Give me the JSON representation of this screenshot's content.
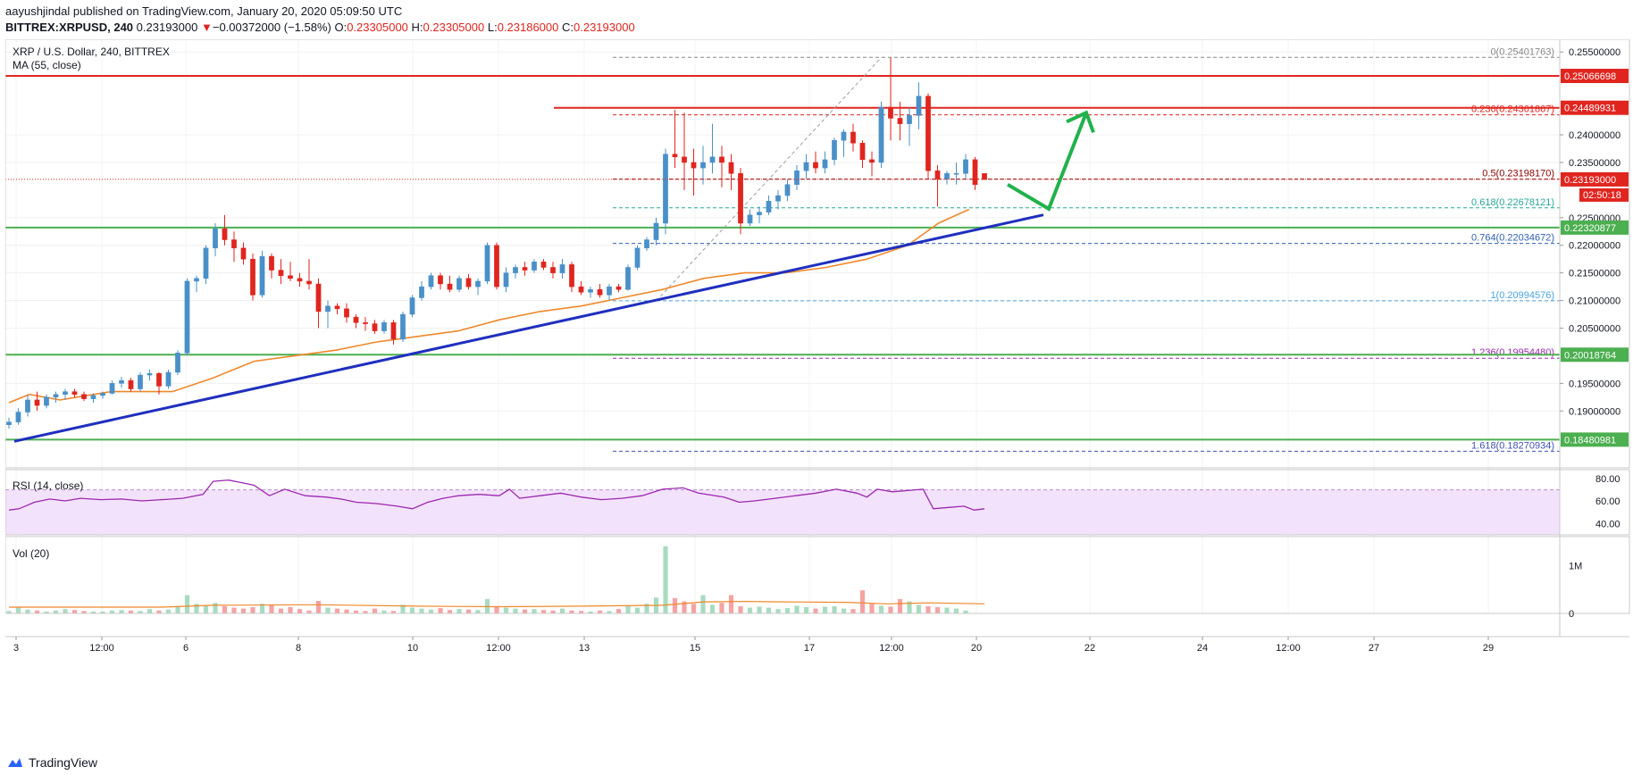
{
  "header": {
    "author": "aayushjindal",
    "published_text": " published on TradingView.com, January 20, 2020 05:09:50 UTC",
    "symbol": "BITTREX:XRPUSD, 240",
    "last": "0.23193000",
    "change": "−0.00372000 (−1.58%)",
    "o_label": "O:",
    "o_value": "0.23305000",
    "h_label": "H:",
    "h_value": "0.23305000",
    "l_label": "L:",
    "l_value": "0.23186000",
    "c_label": "C:",
    "c_value": "0.23193000"
  },
  "legend": {
    "title": "XRP / U.S. Dollar, 240, BITTREX",
    "ma": "MA (55, close)",
    "rsi": "RSI (14, close)",
    "vol": "Vol (20)"
  },
  "footer": {
    "brand": "TradingView"
  },
  "colors": {
    "up": "#4a90c8",
    "down": "#e0251f",
    "ma": "#f0882a",
    "trend": "#1f2fbf",
    "resistance": "#e0251f",
    "support": "#4caf50",
    "rsi": "#9c27b0",
    "rsi_band": "#f3e2fb",
    "arrow": "#22b14c",
    "vol_up": "#a8dcc0",
    "vol_down": "#f5a3a3"
  },
  "chart_data": {
    "type": "candlestick",
    "price_axis": {
      "ticks": [
        "0.25500000",
        "0.24000000",
        "0.23500000",
        "0.22500000",
        "0.22000000",
        "0.21500000",
        "0.21000000",
        "0.20500000",
        "0.19500000",
        "0.19000000"
      ],
      "tick_values": [
        0.255,
        0.24,
        0.235,
        0.225,
        0.22,
        0.215,
        0.21,
        0.205,
        0.195,
        0.19
      ],
      "range": [
        0.1797,
        0.2573
      ]
    },
    "time_axis": {
      "labels": [
        "3",
        "12:00",
        "6",
        "8",
        "10",
        "12:00",
        "13",
        "15",
        "17",
        "12:00",
        "20",
        "22",
        "24",
        "12:00",
        "27",
        "29"
      ]
    },
    "horizontal_levels": [
      {
        "label": "0.25066698",
        "value": 0.25066698,
        "kind": "resistance"
      },
      {
        "label": "0.24489931",
        "value": 0.24489931,
        "kind": "resistance"
      },
      {
        "label": "0.22320877",
        "value": 0.22320877,
        "kind": "support"
      },
      {
        "label": "0.20018764",
        "value": 0.20018764,
        "kind": "support"
      },
      {
        "label": "0.18480981",
        "value": 0.18480981,
        "kind": "support"
      }
    ],
    "current_price": {
      "label": "0.23193000",
      "value": 0.23193,
      "countdown": "02:50:18"
    },
    "fibonacci": [
      {
        "ratio": "0",
        "label": "0(0.25401763)",
        "value": 0.25401763,
        "color": "#888888"
      },
      {
        "ratio": "0.236",
        "label": "0.236(0.24361867)",
        "value": 0.24361867,
        "color": "#e0251f"
      },
      {
        "ratio": "0.5",
        "label": "0.5(0.23198170)",
        "value": 0.2319817,
        "color": "#8b0000"
      },
      {
        "ratio": "0.618",
        "label": "0.618(0.22678121)",
        "value": 0.22678121,
        "color": "#26a69a"
      },
      {
        "ratio": "0.764",
        "label": "0.764(0.22034672)",
        "value": 0.22034672,
        "color": "#2f5fb3"
      },
      {
        "ratio": "1",
        "label": "1(0.20994576)",
        "value": 0.20994576,
        "color": "#4aa3df"
      },
      {
        "ratio": "1.236",
        "label": "1.236(0.19954480)",
        "value": 0.1995448,
        "color": "#9c27b0"
      },
      {
        "ratio": "1.618",
        "label": "1.618(0.18270934)",
        "value": 0.18270934,
        "color": "#3f51b5"
      }
    ],
    "trendline": {
      "from": 0.1845,
      "to": 0.2255
    },
    "candles": [
      [
        0.1875,
        0.1888,
        0.1868,
        0.188
      ],
      [
        0.188,
        0.1905,
        0.1875,
        0.1898
      ],
      [
        0.1898,
        0.193,
        0.189,
        0.192
      ],
      [
        0.192,
        0.1935,
        0.19,
        0.191
      ],
      [
        0.191,
        0.193,
        0.1905,
        0.1925
      ],
      [
        0.1925,
        0.1935,
        0.1915,
        0.193
      ],
      [
        0.193,
        0.194,
        0.192,
        0.1935
      ],
      [
        0.1935,
        0.194,
        0.1925,
        0.193
      ],
      [
        0.193,
        0.1935,
        0.1918,
        0.1922
      ],
      [
        0.1922,
        0.1932,
        0.1915,
        0.1928
      ],
      [
        0.1928,
        0.1935,
        0.1922,
        0.1932
      ],
      [
        0.1932,
        0.1955,
        0.193,
        0.195
      ],
      [
        0.195,
        0.1962,
        0.1942,
        0.1955
      ],
      [
        0.1955,
        0.196,
        0.1935,
        0.194
      ],
      [
        0.194,
        0.197,
        0.1935,
        0.1965
      ],
      [
        0.1965,
        0.1975,
        0.1955,
        0.1968
      ],
      [
        0.1968,
        0.197,
        0.193,
        0.1945
      ],
      [
        0.1945,
        0.1975,
        0.194,
        0.197
      ],
      [
        0.197,
        0.201,
        0.1965,
        0.2005
      ],
      [
        0.2005,
        0.214,
        0.2,
        0.2135
      ],
      [
        0.2135,
        0.2145,
        0.2115,
        0.214
      ],
      [
        0.214,
        0.22,
        0.213,
        0.2195
      ],
      [
        0.2195,
        0.224,
        0.218,
        0.223
      ],
      [
        0.223,
        0.2255,
        0.22,
        0.221
      ],
      [
        0.221,
        0.2225,
        0.217,
        0.2195
      ],
      [
        0.2195,
        0.2205,
        0.2165,
        0.2175
      ],
      [
        0.2175,
        0.2185,
        0.21,
        0.211
      ],
      [
        0.211,
        0.219,
        0.2105,
        0.218
      ],
      [
        0.218,
        0.2185,
        0.214,
        0.2155
      ],
      [
        0.2155,
        0.2175,
        0.213,
        0.2145
      ],
      [
        0.2145,
        0.217,
        0.2135,
        0.214
      ],
      [
        0.214,
        0.215,
        0.2125,
        0.2135
      ],
      [
        0.2135,
        0.2175,
        0.212,
        0.213
      ],
      [
        0.213,
        0.214,
        0.205,
        0.208
      ],
      [
        0.208,
        0.21,
        0.205,
        0.209
      ],
      [
        0.209,
        0.2095,
        0.2075,
        0.2085
      ],
      [
        0.2085,
        0.2095,
        0.206,
        0.207
      ],
      [
        0.207,
        0.2075,
        0.205,
        0.206
      ],
      [
        0.206,
        0.207,
        0.2045,
        0.2058
      ],
      [
        0.2058,
        0.2065,
        0.204,
        0.2045
      ],
      [
        0.2045,
        0.2065,
        0.204,
        0.206
      ],
      [
        0.206,
        0.2065,
        0.202,
        0.203
      ],
      [
        0.203,
        0.208,
        0.2025,
        0.2075
      ],
      [
        0.2075,
        0.211,
        0.207,
        0.2105
      ],
      [
        0.2105,
        0.2135,
        0.21,
        0.2125
      ],
      [
        0.2125,
        0.215,
        0.212,
        0.2145
      ],
      [
        0.2145,
        0.215,
        0.212,
        0.213
      ],
      [
        0.213,
        0.2145,
        0.2115,
        0.212
      ],
      [
        0.212,
        0.2145,
        0.2115,
        0.214
      ],
      [
        0.214,
        0.2148,
        0.212,
        0.2125
      ],
      [
        0.2125,
        0.214,
        0.211,
        0.2135
      ],
      [
        0.2135,
        0.2205,
        0.213,
        0.22
      ],
      [
        0.22,
        0.2205,
        0.212,
        0.2125
      ],
      [
        0.2125,
        0.216,
        0.2115,
        0.215
      ],
      [
        0.215,
        0.2165,
        0.214,
        0.216
      ],
      [
        0.216,
        0.217,
        0.2145,
        0.2155
      ],
      [
        0.2155,
        0.2175,
        0.215,
        0.217
      ],
      [
        0.217,
        0.2175,
        0.2155,
        0.216
      ],
      [
        0.216,
        0.217,
        0.214,
        0.215
      ],
      [
        0.215,
        0.2175,
        0.214,
        0.2165
      ],
      [
        0.2165,
        0.217,
        0.2115,
        0.2125
      ],
      [
        0.2125,
        0.2135,
        0.211,
        0.2115
      ],
      [
        0.2115,
        0.2125,
        0.2105,
        0.212
      ],
      [
        0.212,
        0.213,
        0.2105,
        0.211
      ],
      [
        0.211,
        0.213,
        0.21,
        0.2125
      ],
      [
        0.2125,
        0.213,
        0.2115,
        0.212
      ],
      [
        0.212,
        0.2165,
        0.2118,
        0.216
      ],
      [
        0.216,
        0.22,
        0.2155,
        0.2195
      ],
      [
        0.2195,
        0.2215,
        0.219,
        0.221
      ],
      [
        0.221,
        0.225,
        0.22,
        0.224
      ],
      [
        0.224,
        0.2375,
        0.222,
        0.2365
      ],
      [
        0.2365,
        0.2445,
        0.234,
        0.236
      ],
      [
        0.236,
        0.244,
        0.23,
        0.235
      ],
      [
        0.235,
        0.2375,
        0.229,
        0.234
      ],
      [
        0.234,
        0.238,
        0.231,
        0.235
      ],
      [
        0.235,
        0.242,
        0.233,
        0.236
      ],
      [
        0.236,
        0.238,
        0.2305,
        0.235
      ],
      [
        0.235,
        0.2365,
        0.23,
        0.233
      ],
      [
        0.233,
        0.234,
        0.222,
        0.224
      ],
      [
        0.224,
        0.2265,
        0.2235,
        0.2255
      ],
      [
        0.2255,
        0.227,
        0.224,
        0.226
      ],
      [
        0.226,
        0.229,
        0.2255,
        0.228
      ],
      [
        0.228,
        0.23,
        0.2265,
        0.229
      ],
      [
        0.229,
        0.232,
        0.228,
        0.231
      ],
      [
        0.231,
        0.2345,
        0.23,
        0.2335
      ],
      [
        0.2335,
        0.2365,
        0.232,
        0.235
      ],
      [
        0.235,
        0.237,
        0.233,
        0.234
      ],
      [
        0.234,
        0.237,
        0.233,
        0.2355
      ],
      [
        0.2355,
        0.2395,
        0.2345,
        0.239
      ],
      [
        0.239,
        0.241,
        0.236,
        0.2405
      ],
      [
        0.2405,
        0.242,
        0.237,
        0.2385
      ],
      [
        0.2385,
        0.239,
        0.234,
        0.2355
      ],
      [
        0.2355,
        0.237,
        0.2325,
        0.235
      ],
      [
        0.235,
        0.246,
        0.234,
        0.245
      ],
      [
        0.245,
        0.254,
        0.239,
        0.243
      ],
      [
        0.243,
        0.246,
        0.239,
        0.242
      ],
      [
        0.242,
        0.245,
        0.238,
        0.2435
      ],
      [
        0.2435,
        0.2495,
        0.241,
        0.247
      ],
      [
        0.247,
        0.2475,
        0.232,
        0.2335
      ],
      [
        0.2335,
        0.2345,
        0.227,
        0.232
      ],
      [
        0.232,
        0.2335,
        0.231,
        0.233
      ],
      [
        0.233,
        0.235,
        0.231,
        0.233
      ],
      [
        0.233,
        0.2365,
        0.232,
        0.2355
      ],
      [
        0.2355,
        0.236,
        0.23,
        0.231
      ],
      [
        0.233,
        0.233,
        0.2319,
        0.2319
      ]
    ],
    "ma55": [
      [
        0,
        0.1915
      ],
      [
        20,
        0.193
      ],
      [
        50,
        0.192
      ],
      [
        100,
        0.1935
      ],
      [
        160,
        0.1935
      ],
      [
        200,
        0.196
      ],
      [
        240,
        0.199
      ],
      [
        280,
        0.2
      ],
      [
        320,
        0.201
      ],
      [
        360,
        0.2025
      ],
      [
        400,
        0.2035
      ],
      [
        440,
        0.2045
      ],
      [
        480,
        0.2065
      ],
      [
        520,
        0.208
      ],
      [
        560,
        0.209
      ],
      [
        600,
        0.2105
      ],
      [
        640,
        0.212
      ],
      [
        680,
        0.214
      ],
      [
        720,
        0.215
      ],
      [
        760,
        0.215
      ],
      [
        800,
        0.216
      ],
      [
        840,
        0.2175
      ],
      [
        880,
        0.22
      ],
      [
        910,
        0.224
      ],
      [
        940,
        0.2265
      ]
    ],
    "rsi": {
      "ticks": [
        "80.00",
        "60.00",
        "40.00"
      ],
      "tick_values": [
        80,
        60,
        40
      ],
      "range": [
        30,
        88
      ],
      "band": [
        30,
        70
      ],
      "points": [
        [
          0,
          0.38
        ],
        [
          10,
          0.4
        ],
        [
          25,
          0.5
        ],
        [
          40,
          0.55
        ],
        [
          55,
          0.52
        ],
        [
          70,
          0.56
        ],
        [
          90,
          0.54
        ],
        [
          110,
          0.55
        ],
        [
          130,
          0.52
        ],
        [
          150,
          0.54
        ],
        [
          170,
          0.56
        ],
        [
          190,
          0.62
        ],
        [
          200,
          0.82
        ],
        [
          215,
          0.84
        ],
        [
          228,
          0.8
        ],
        [
          240,
          0.76
        ],
        [
          255,
          0.6
        ],
        [
          270,
          0.7
        ],
        [
          290,
          0.6
        ],
        [
          310,
          0.58
        ],
        [
          325,
          0.55
        ],
        [
          340,
          0.5
        ],
        [
          360,
          0.48
        ],
        [
          380,
          0.44
        ],
        [
          395,
          0.4
        ],
        [
          410,
          0.5
        ],
        [
          425,
          0.56
        ],
        [
          440,
          0.6
        ],
        [
          460,
          0.62
        ],
        [
          480,
          0.6
        ],
        [
          490,
          0.7
        ],
        [
          500,
          0.56
        ],
        [
          520,
          0.6
        ],
        [
          540,
          0.64
        ],
        [
          560,
          0.58
        ],
        [
          580,
          0.54
        ],
        [
          600,
          0.56
        ],
        [
          620,
          0.6
        ],
        [
          640,
          0.7
        ],
        [
          660,
          0.72
        ],
        [
          675,
          0.64
        ],
        [
          700,
          0.58
        ],
        [
          715,
          0.5
        ],
        [
          730,
          0.52
        ],
        [
          750,
          0.56
        ],
        [
          770,
          0.6
        ],
        [
          790,
          0.64
        ],
        [
          810,
          0.7
        ],
        [
          830,
          0.64
        ],
        [
          840,
          0.58
        ],
        [
          850,
          0.7
        ],
        [
          865,
          0.66
        ],
        [
          880,
          0.68
        ],
        [
          895,
          0.7
        ],
        [
          905,
          0.4
        ],
        [
          920,
          0.42
        ],
        [
          935,
          0.44
        ],
        [
          945,
          0.38
        ],
        [
          955,
          0.4
        ]
      ]
    },
    "volume": {
      "ticks": [
        "1M",
        "0"
      ],
      "tick_values": [
        1000000,
        0
      ],
      "max": 1600000,
      "values": [
        50000,
        120000,
        80000,
        60000,
        40000,
        60000,
        90000,
        70000,
        50000,
        40000,
        40000,
        60000,
        70000,
        60000,
        50000,
        90000,
        60000,
        80000,
        140000,
        380000,
        200000,
        160000,
        220000,
        150000,
        120000,
        100000,
        130000,
        200000,
        170000,
        100000,
        130000,
        90000,
        60000,
        260000,
        120000,
        100000,
        80000,
        60000,
        50000,
        100000,
        60000,
        50000,
        180000,
        120000,
        100000,
        80000,
        110000,
        70000,
        90000,
        80000,
        70000,
        300000,
        150000,
        120000,
        100000,
        80000,
        90000,
        70000,
        60000,
        100000,
        60000,
        50000,
        40000,
        60000,
        50000,
        90000,
        160000,
        120000,
        200000,
        330000,
        1400000,
        320000,
        250000,
        200000,
        380000,
        180000,
        220000,
        380000,
        150000,
        120000,
        140000,
        120000,
        90000,
        110000,
        160000,
        130000,
        100000,
        140000,
        150000,
        100000,
        90000,
        480000,
        200000,
        160000,
        140000,
        300000,
        250000,
        180000,
        150000,
        130000,
        120000,
        100000,
        60000
      ],
      "ma": [
        [
          0,
          130000
        ],
        [
          150,
          130000
        ],
        [
          200,
          170000
        ],
        [
          300,
          180000
        ],
        [
          400,
          150000
        ],
        [
          480,
          140000
        ],
        [
          560,
          150000
        ],
        [
          640,
          170000
        ],
        [
          680,
          240000
        ],
        [
          720,
          250000
        ],
        [
          760,
          240000
        ],
        [
          820,
          230000
        ],
        [
          860,
          200000
        ],
        [
          900,
          220000
        ],
        [
          955,
          200000
        ]
      ]
    },
    "annotation": {
      "type": "projection-arrow",
      "path": [
        [
          0.231,
          0
        ],
        [
          0.2266,
          1
        ],
        [
          0.244,
          2
        ]
      ]
    }
  }
}
